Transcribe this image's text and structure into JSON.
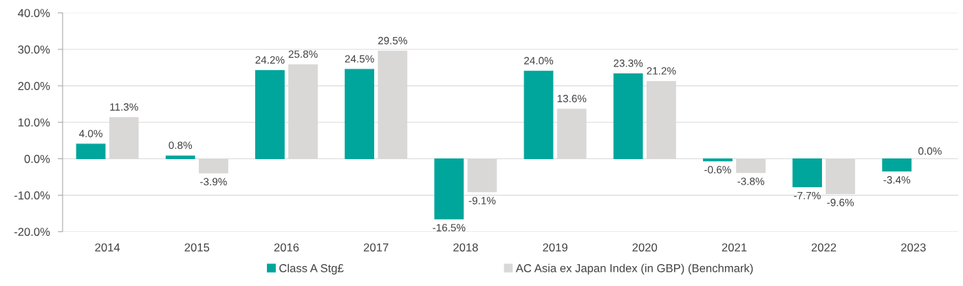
{
  "chart_data": {
    "type": "bar",
    "categories": [
      "2014",
      "2015",
      "2016",
      "2017",
      "2018",
      "2019",
      "2020",
      "2021",
      "2022",
      "2023"
    ],
    "series": [
      {
        "name": "Class A Stg£",
        "color": "#00a59b",
        "values": [
          4.0,
          0.8,
          24.2,
          24.5,
          -16.5,
          24.0,
          23.3,
          -0.6,
          -7.7,
          -3.4
        ],
        "value_labels": [
          "4.0%",
          "0.8%",
          "24.2%",
          "24.5%",
          "-16.5%",
          "24.0%",
          "23.3%",
          "-0.6%",
          "-7.7%",
          "-3.4%"
        ]
      },
      {
        "name": "AC Asia ex Japan Index (in GBP) (Benchmark)",
        "color": "#d9d8d6",
        "values": [
          11.3,
          -3.9,
          25.8,
          29.5,
          -9.1,
          13.6,
          21.2,
          -3.8,
          -9.6,
          0.0
        ],
        "value_labels": [
          "11.3%",
          "-3.9%",
          "25.8%",
          "29.5%",
          "-9.1%",
          "13.6%",
          "21.2%",
          "-3.8%",
          "-9.6%",
          "0.0%"
        ]
      }
    ],
    "ylim": [
      -20,
      40
    ],
    "yticks": [
      {
        "value": -20,
        "label": "-20.0%"
      },
      {
        "value": -10,
        "label": "-10.0%"
      },
      {
        "value": 0,
        "label": "0.0%"
      },
      {
        "value": 10,
        "label": "10.0%"
      },
      {
        "value": 20,
        "label": "20.0%"
      },
      {
        "value": 30,
        "label": "30.0%"
      },
      {
        "value": 40,
        "label": "40.0%"
      }
    ],
    "grid": "y",
    "legend": "bottom"
  }
}
